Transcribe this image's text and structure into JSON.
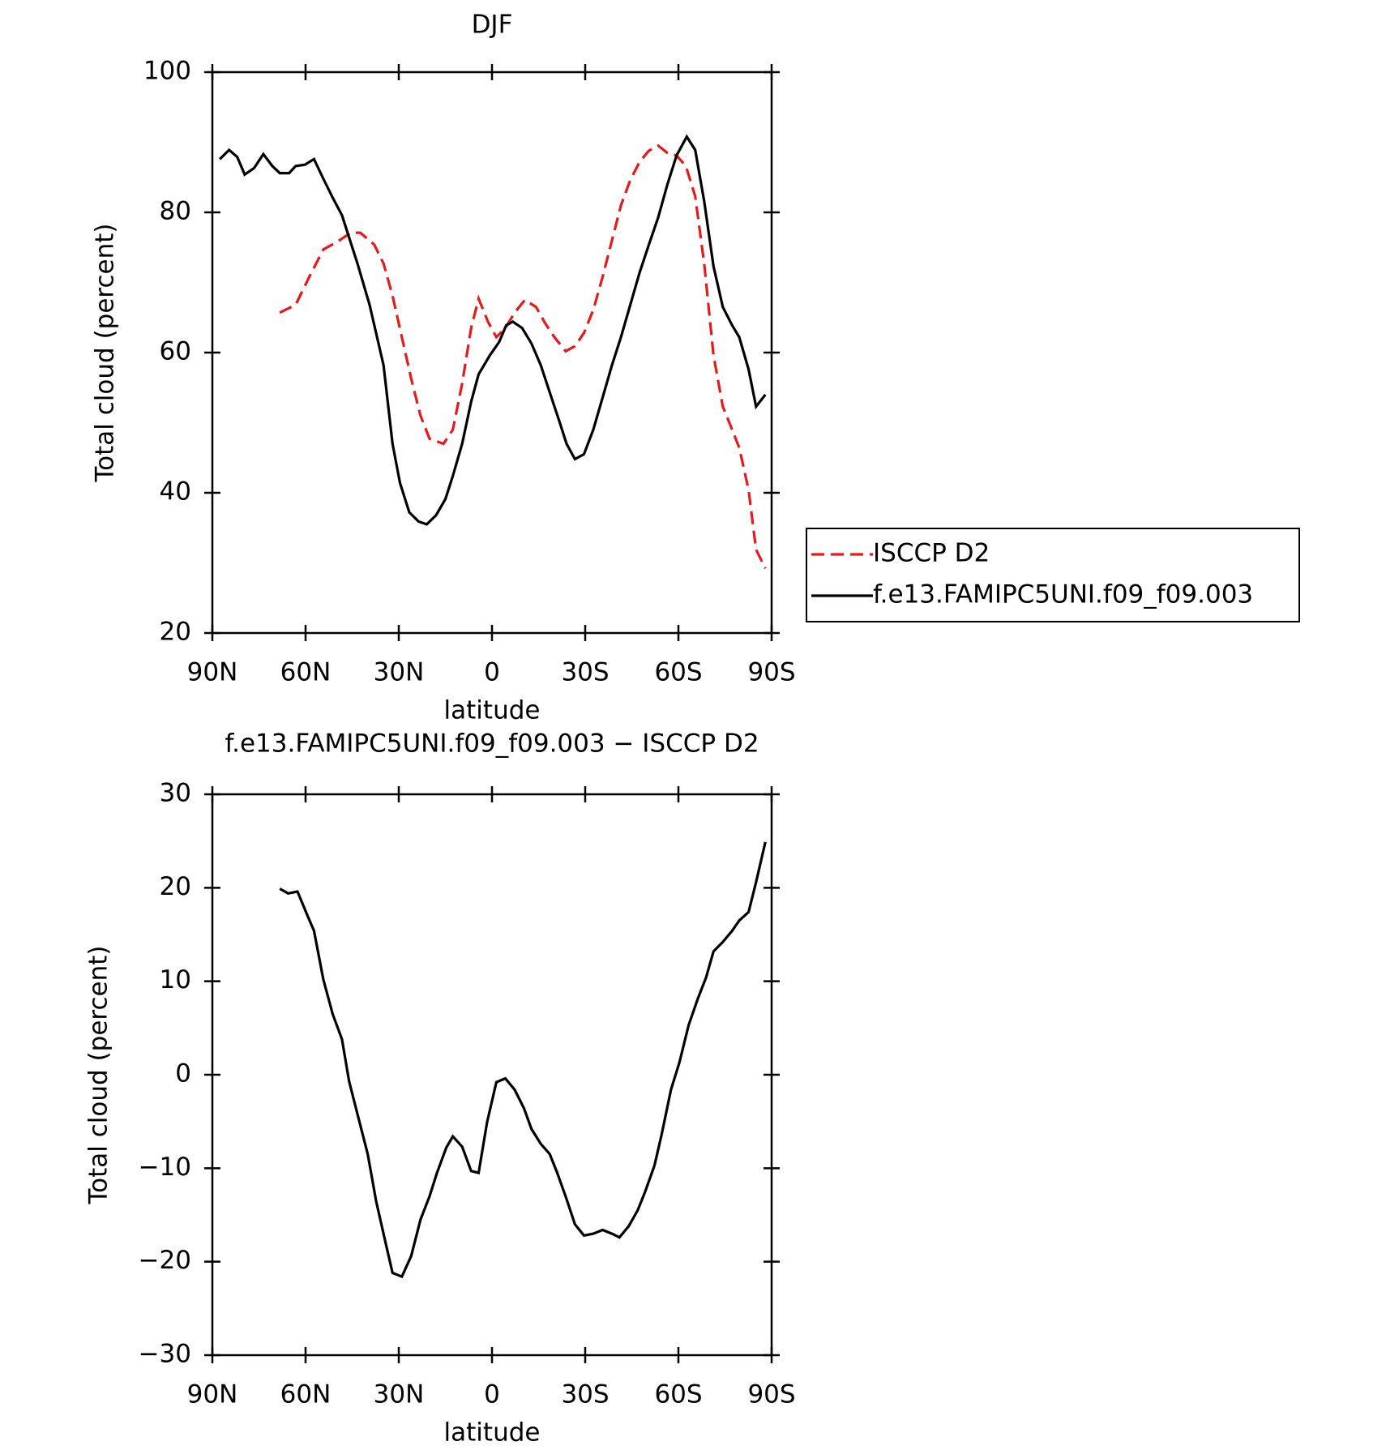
{
  "chart_data": [
    {
      "type": "line",
      "title": "DJF",
      "xlabel": "latitude",
      "ylabel": "Total cloud (percent)",
      "xlim": [
        90,
        -90
      ],
      "xticks": [
        {
          "value": 90,
          "label": "90N"
        },
        {
          "value": 60,
          "label": "60N"
        },
        {
          "value": 30,
          "label": "30N"
        },
        0,
        {
          "value": -30,
          "label": "30S"
        },
        {
          "value": -60,
          "label": "60S"
        },
        {
          "value": -90,
          "label": "90S"
        }
      ],
      "ylim": [
        20,
        100
      ],
      "yticks": [
        20,
        40,
        60,
        80,
        100
      ],
      "legend": "right",
      "series": [
        {
          "name": "ISCCP D2",
          "color": "#e41a1c",
          "dash": true,
          "x": [
            68.3,
            63.2,
            58.8,
            54.3,
            49.8,
            45.4,
            42.4,
            37.9,
            34.9,
            32,
            29,
            26,
            23,
            20.1,
            15.6,
            12.6,
            9.6,
            6.7,
            4.3,
            1.3,
            -1.4,
            -4.3,
            -7.3,
            -10.6,
            -14.2,
            -17.1,
            -20.1,
            -23.7,
            -26.7,
            -29.6,
            -32.6,
            -35.6,
            -38.6,
            -41.5,
            -44.5,
            -47.5,
            -50.5,
            -53.5,
            -56.4,
            -59.4,
            -62.4,
            -65.4,
            -68.3,
            -71.3,
            -74.3,
            -77.3,
            -79.6,
            -82.6,
            -85,
            -88
          ],
          "values": [
            65.7,
            66.8,
            70.8,
            74.7,
            75.8,
            77.1,
            77.1,
            75.4,
            72.7,
            68.1,
            62.2,
            56.3,
            51,
            47.7,
            47,
            49,
            55.6,
            63.5,
            67.7,
            64.4,
            62.2,
            63.5,
            65.7,
            67.5,
            66.5,
            64.2,
            62.2,
            60.2,
            60.9,
            62.8,
            66.1,
            70.8,
            76,
            81,
            84.6,
            87.2,
            88.8,
            89.5,
            88.5,
            88.1,
            86.6,
            82.3,
            72.7,
            59.6,
            52.3,
            49,
            46.4,
            40.4,
            31.9,
            29.2
          ]
        },
        {
          "name": "f.e13.FAMIPC5UNI.f09_f09.003",
          "color": "#000000",
          "dash": false,
          "x": [
            87.6,
            84.6,
            82,
            79.6,
            76.6,
            73.6,
            70.7,
            68.3,
            65.3,
            63.2,
            60.2,
            57.3,
            54.3,
            51.3,
            48.3,
            43.3,
            39.4,
            34.9,
            32,
            29.6,
            26.6,
            23.6,
            21,
            18,
            15,
            12.6,
            9.6,
            6.7,
            4.3,
            0.7,
            -2.3,
            -4.6,
            -6.7,
            -9.7,
            -12.7,
            -15.7,
            -18.6,
            -21.6,
            -24,
            -26.7,
            -29.6,
            -32.6,
            -35.6,
            -38.6,
            -41.5,
            -44.5,
            -47.5,
            -50.5,
            -53.5,
            -56.4,
            -59.4,
            -62.7,
            -65.4,
            -68.3,
            -71.3,
            -74.3,
            -77.3,
            -79.6,
            -82.6,
            -85,
            -88
          ],
          "values": [
            87.6,
            88.9,
            87.9,
            85.4,
            86.3,
            88.3,
            86.6,
            85.6,
            85.6,
            86.6,
            86.8,
            87.6,
            84.8,
            82.1,
            79.6,
            72.7,
            66.8,
            58.2,
            47,
            41.4,
            37.2,
            35.9,
            35.5,
            36.8,
            39.1,
            42.4,
            47,
            53,
            56.9,
            59.6,
            61.5,
            63.9,
            64.4,
            63.5,
            61.3,
            58.2,
            54.3,
            50.3,
            47,
            44.8,
            45.5,
            49,
            53.6,
            58.2,
            62.2,
            66.8,
            71.4,
            75.4,
            79.3,
            83.9,
            88.1,
            90.8,
            88.9,
            81.6,
            72.3,
            66.5,
            63.9,
            62.2,
            57.6,
            52.3,
            54
          ]
        }
      ]
    },
    {
      "type": "line",
      "title": "f.e13.FAMIPC5UNI.f09_f09.003 − ISCCP D2",
      "xlabel": "latitude",
      "ylabel": "Total cloud (percent)",
      "xlim": [
        90,
        -90
      ],
      "xticks": [
        {
          "value": 90,
          "label": "90N"
        },
        {
          "value": 60,
          "label": "60N"
        },
        {
          "value": 30,
          "label": "30N"
        },
        0,
        {
          "value": -30,
          "label": "30S"
        },
        {
          "value": -60,
          "label": "60S"
        },
        {
          "value": -90,
          "label": "90S"
        }
      ],
      "ylim": [
        -30,
        30
      ],
      "yticks": [
        {
          "value": -30,
          "label": "−30"
        },
        {
          "value": -20,
          "label": "−20"
        },
        {
          "value": -10,
          "label": "−10"
        },
        0,
        10,
        20,
        30
      ],
      "series": [
        {
          "color": "#000000",
          "dash": false,
          "x": [
            68.3,
            65.6,
            62.6,
            59.6,
            57.3,
            54.3,
            51.3,
            48.3,
            46,
            43,
            40,
            37.3,
            34.3,
            32,
            29,
            26,
            23,
            20.1,
            17.7,
            14.7,
            12.6,
            9.6,
            6.7,
            4.3,
            1.6,
            -1.4,
            -4.3,
            -7.3,
            -10.3,
            -12.7,
            -15.7,
            -18.6,
            -21,
            -24,
            -26.7,
            -29.6,
            -32.6,
            -35.6,
            -38.6,
            -41,
            -44,
            -46.9,
            -49.3,
            -52.3,
            -54.6,
            -57.6,
            -60.3,
            -63.3,
            -66.2,
            -68.9,
            -71.3,
            -74.3,
            -77.3,
            -79.6,
            -82.6,
            -85,
            -88
          ],
          "values": [
            19.9,
            19.4,
            19.6,
            17.2,
            15.4,
            10.2,
            6.5,
            3.8,
            -0.7,
            -4.6,
            -8.5,
            -13.5,
            -17.9,
            -21.2,
            -21.6,
            -19.4,
            -15.5,
            -13,
            -10.5,
            -7.8,
            -6.6,
            -7.7,
            -10.3,
            -10.5,
            -5.1,
            -0.8,
            -0.4,
            -1.6,
            -3.6,
            -5.8,
            -7.4,
            -8.5,
            -10.5,
            -13.3,
            -16,
            -17.2,
            -17,
            -16.6,
            -17,
            -17.4,
            -16.2,
            -14.5,
            -12.5,
            -9.7,
            -6.4,
            -1.6,
            1.3,
            5.3,
            8.1,
            10.4,
            13.2,
            14.2,
            15.4,
            16.5,
            17.4,
            20.6,
            24.9
          ]
        }
      ]
    }
  ]
}
